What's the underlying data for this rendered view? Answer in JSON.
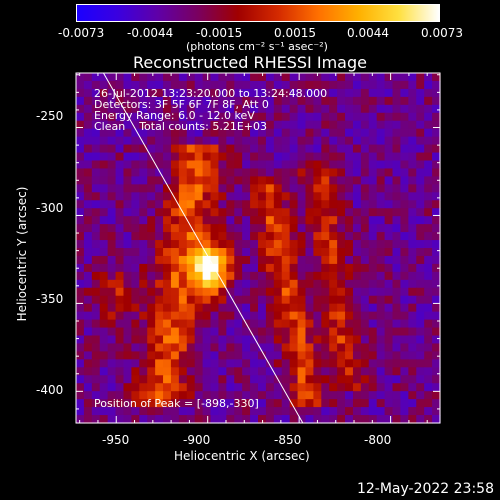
{
  "colorbar": {
    "tick_labels": [
      "-0.0073",
      "-0.0044",
      "-0.0015",
      "0.0015",
      "0.0044",
      "0.0073"
    ],
    "units": "(photons cm⁻² s⁻¹ asec⁻²)",
    "colors": [
      "#1b00ff",
      "#3a00e0",
      "#5f00a8",
      "#7a0060",
      "#a00000",
      "#d42a00",
      "#ff7000",
      "#ffb000",
      "#ffe040",
      "#ffffff"
    ]
  },
  "chart_data": {
    "type": "heatmap",
    "title": "Reconstructed RHESSI Image",
    "xlabel": "Heliocentric X (arcsec)",
    "ylabel": "Heliocentric Y (arcsec)",
    "xlim": [
      -972,
      -773
    ],
    "ylim": [
      -418,
      -219
    ],
    "xticks": [
      "-950",
      "-900",
      "-850",
      "-800"
    ],
    "yticks": [
      "-250",
      "-300",
      "-350",
      "-400"
    ],
    "annotations": [
      "26-Jul-2012 13:23:20.000 to 13:24:48.000",
      "Detectors: 3F 5F 6F 7F 8F, Att 0",
      "Energy Range: 6.0 - 12.0 keV",
      "Clean    Total counts: 5.21E+03"
    ],
    "peak_label": "Position of Peak = [-898,-330]",
    "peak": [
      -898,
      -330
    ],
    "limb_line": [
      [
        -957,
        -219
      ],
      [
        -848,
        -418
      ]
    ]
  },
  "footer": {
    "timestamp": "12-May-2022 23:58"
  }
}
